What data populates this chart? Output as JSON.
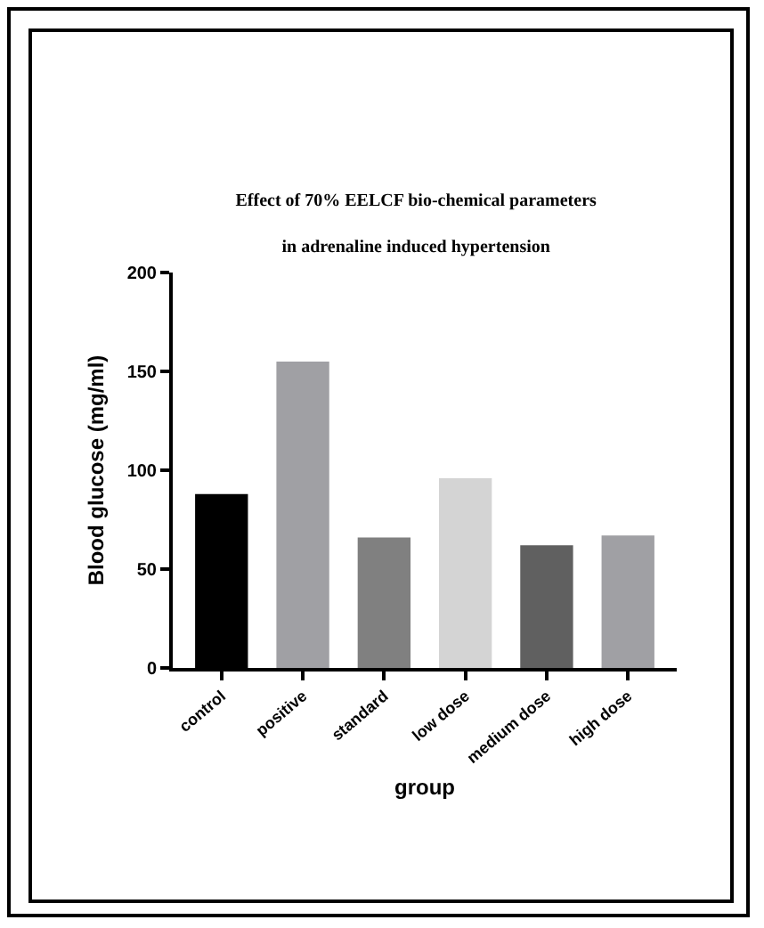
{
  "chart_data": {
    "type": "bar",
    "title": "Effect of 70% EELCF bio-chemical parameters",
    "subtitle": "in adrenaline induced hypertension",
    "xlabel": "group",
    "ylabel": "Blood glucose (mg/ml)",
    "categories": [
      "control",
      "positive",
      "standard",
      "low dose",
      "medium dose",
      "high dose"
    ],
    "values": [
      88,
      155,
      66,
      96,
      62,
      67
    ],
    "colors": [
      "#000000",
      "#a0a0a4",
      "#808080",
      "#d4d4d4",
      "#606060",
      "#a0a0a4"
    ],
    "ylim": [
      0,
      200
    ],
    "yticks": [
      0,
      50,
      100,
      150,
      200
    ],
    "grid": false
  }
}
